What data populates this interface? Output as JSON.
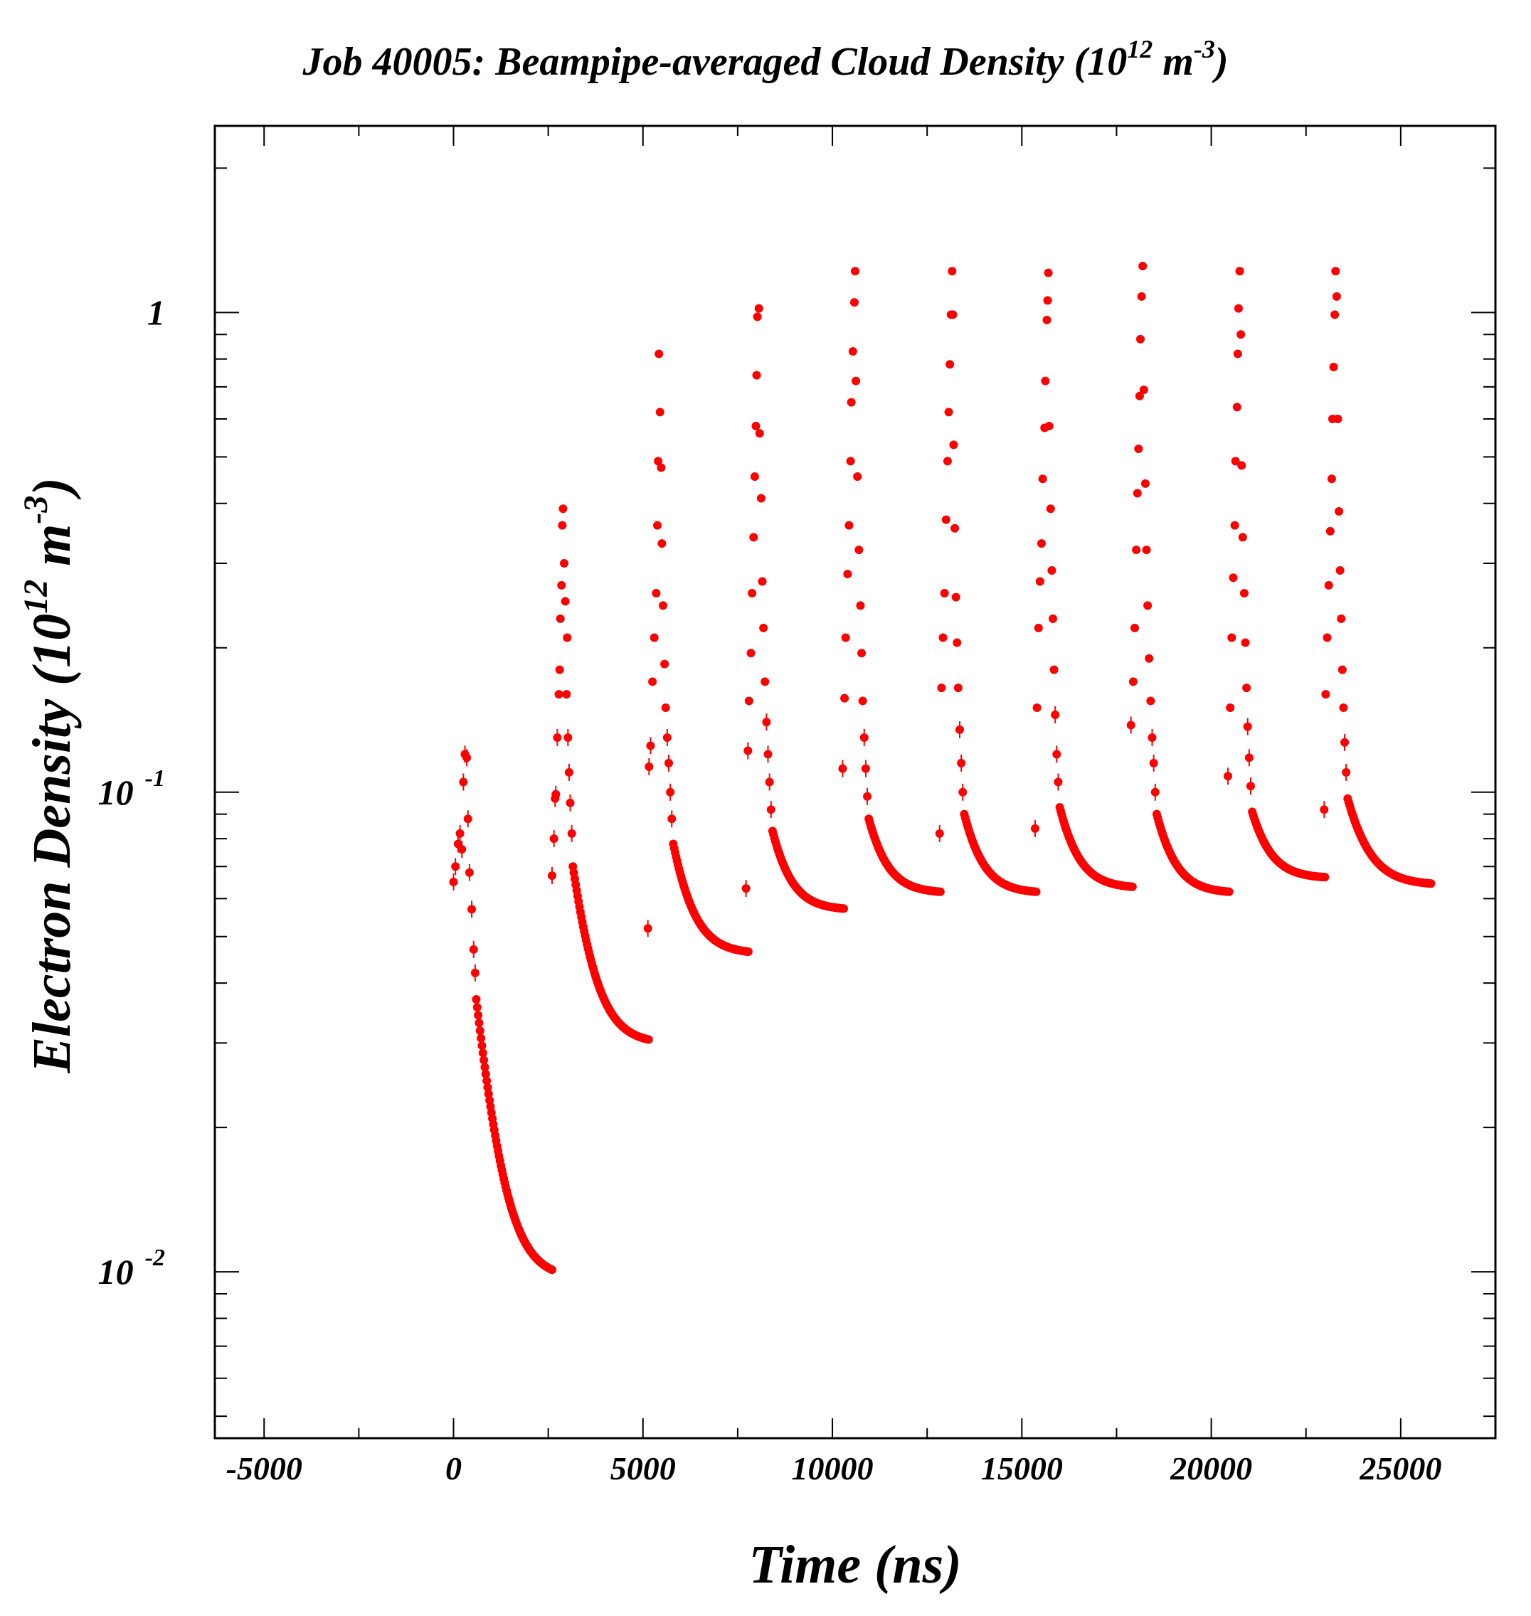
{
  "chart_data": {
    "type": "scatter",
    "title": {
      "main": "Job 40005: Beampipe-averaged Cloud Density (10",
      "sup1": "12",
      "mid": " m",
      "sup2": "-3",
      "end": ")"
    },
    "xlabel": "Time (ns)",
    "ylabel": {
      "main": "Electron Density (10",
      "sup1": "12",
      "mid": " m",
      "sup2": "-3",
      "end": ")"
    },
    "xlim": [
      -6300,
      27500
    ],
    "ylim": [
      0.0045,
      2.45
    ],
    "yscale": "log",
    "grid": false,
    "x_ticks": [
      "-5000",
      "0",
      "5000",
      "10000",
      "15000",
      "20000",
      "25000"
    ],
    "y_ticks": [
      {
        "base": "1",
        "exp": ""
      },
      {
        "base": "10",
        "exp": "-1"
      },
      {
        "base": "10",
        "exp": "-2"
      }
    ],
    "marker_color": "#ff0000",
    "series": [
      {
        "points": [
          [
            0,
            0.065
          ],
          [
            50,
            0.07
          ],
          [
            120,
            0.078
          ],
          [
            170,
            0.082
          ],
          [
            220,
            0.076
          ],
          [
            260,
            0.105
          ],
          [
            300,
            0.12
          ],
          [
            350,
            0.118
          ],
          [
            380,
            0.088
          ],
          [
            420,
            0.068
          ],
          [
            480,
            0.057
          ],
          [
            530,
            0.047
          ],
          [
            570,
            0.042
          ]
        ],
        "decay": {
          "t_start": 600,
          "t_end": 2600,
          "v_start": 0.037,
          "v_end": 0.0101
        }
      },
      {
        "points": [
          [
            2600,
            0.067
          ],
          [
            2650,
            0.08
          ],
          [
            2680,
            0.097
          ],
          [
            2700,
            0.099
          ],
          [
            2740,
            0.13
          ],
          [
            2780,
            0.16
          ],
          [
            2800,
            0.18
          ],
          [
            2820,
            0.23
          ],
          [
            2850,
            0.27
          ],
          [
            2870,
            0.36
          ],
          [
            2890,
            0.39
          ],
          [
            2920,
            0.3
          ],
          [
            2950,
            0.25
          ],
          [
            2980,
            0.16
          ],
          [
            3000,
            0.21
          ],
          [
            3020,
            0.13
          ],
          [
            3050,
            0.11
          ],
          [
            3080,
            0.095
          ],
          [
            3120,
            0.082
          ]
        ],
        "decay": {
          "t_start": 3150,
          "t_end": 5150,
          "v_start": 0.07,
          "v_end": 0.0305
        }
      },
      {
        "points": [
          [
            5130,
            0.052
          ],
          [
            5160,
            0.113
          ],
          [
            5200,
            0.125
          ],
          [
            5250,
            0.17
          ],
          [
            5300,
            0.21
          ],
          [
            5350,
            0.26
          ],
          [
            5380,
            0.36
          ],
          [
            5400,
            0.49
          ],
          [
            5420,
            0.82
          ],
          [
            5450,
            0.62
          ],
          [
            5480,
            0.475
          ],
          [
            5500,
            0.33
          ],
          [
            5530,
            0.245
          ],
          [
            5570,
            0.185
          ],
          [
            5600,
            0.15
          ],
          [
            5640,
            0.13
          ],
          [
            5680,
            0.115
          ],
          [
            5720,
            0.1
          ],
          [
            5760,
            0.088
          ]
        ],
        "decay": {
          "t_start": 5800,
          "t_end": 7780,
          "v_start": 0.078,
          "v_end": 0.0465
        }
      },
      {
        "points": [
          [
            7720,
            0.063
          ],
          [
            7770,
            0.122
          ],
          [
            7800,
            0.155
          ],
          [
            7850,
            0.195
          ],
          [
            7880,
            0.26
          ],
          [
            7920,
            0.34
          ],
          [
            7950,
            0.455
          ],
          [
            7980,
            0.58
          ],
          [
            8000,
            0.74
          ],
          [
            8020,
            0.98
          ],
          [
            8060,
            1.02
          ],
          [
            8080,
            0.56
          ],
          [
            8120,
            0.41
          ],
          [
            8150,
            0.275
          ],
          [
            8180,
            0.22
          ],
          [
            8220,
            0.17
          ],
          [
            8260,
            0.14
          ],
          [
            8300,
            0.12
          ],
          [
            8340,
            0.105
          ],
          [
            8380,
            0.092
          ]
        ],
        "decay": {
          "t_start": 8420,
          "t_end": 10300,
          "v_start": 0.083,
          "v_end": 0.0572
        }
      },
      {
        "points": [
          [
            10270,
            0.112
          ],
          [
            10320,
            0.157
          ],
          [
            10350,
            0.21
          ],
          [
            10400,
            0.285
          ],
          [
            10440,
            0.36
          ],
          [
            10480,
            0.49
          ],
          [
            10500,
            0.65
          ],
          [
            10540,
            0.83
          ],
          [
            10580,
            1.05
          ],
          [
            10600,
            1.22
          ],
          [
            10620,
            0.72
          ],
          [
            10660,
            0.455
          ],
          [
            10700,
            0.32
          ],
          [
            10740,
            0.245
          ],
          [
            10770,
            0.195
          ],
          [
            10800,
            0.155
          ],
          [
            10840,
            0.13
          ],
          [
            10880,
            0.112
          ],
          [
            10920,
            0.098
          ]
        ],
        "decay": {
          "t_start": 10960,
          "t_end": 12850,
          "v_start": 0.088,
          "v_end": 0.062
        }
      },
      {
        "points": [
          [
            12830,
            0.082
          ],
          [
            12880,
            0.165
          ],
          [
            12920,
            0.21
          ],
          [
            12960,
            0.26
          ],
          [
            13000,
            0.37
          ],
          [
            13040,
            0.49
          ],
          [
            13070,
            0.62
          ],
          [
            13100,
            0.78
          ],
          [
            13130,
            0.99
          ],
          [
            13160,
            1.22
          ],
          [
            13180,
            0.99
          ],
          [
            13200,
            0.53
          ],
          [
            13230,
            0.355
          ],
          [
            13260,
            0.255
          ],
          [
            13290,
            0.205
          ],
          [
            13320,
            0.165
          ],
          [
            13360,
            0.135
          ],
          [
            13400,
            0.115
          ],
          [
            13440,
            0.1
          ]
        ],
        "decay": {
          "t_start": 13480,
          "t_end": 15380,
          "v_start": 0.09,
          "v_end": 0.062
        }
      },
      {
        "points": [
          [
            15350,
            0.084
          ],
          [
            15400,
            0.15
          ],
          [
            15440,
            0.22
          ],
          [
            15480,
            0.275
          ],
          [
            15520,
            0.33
          ],
          [
            15550,
            0.45
          ],
          [
            15600,
            0.575
          ],
          [
            15620,
            0.72
          ],
          [
            15660,
            0.965
          ],
          [
            15680,
            1.06
          ],
          [
            15700,
            1.21
          ],
          [
            15720,
            0.58
          ],
          [
            15760,
            0.39
          ],
          [
            15790,
            0.29
          ],
          [
            15820,
            0.23
          ],
          [
            15850,
            0.18
          ],
          [
            15880,
            0.145
          ],
          [
            15920,
            0.12
          ],
          [
            15960,
            0.105
          ]
        ],
        "decay": {
          "t_start": 16000,
          "t_end": 17920,
          "v_start": 0.093,
          "v_end": 0.0635
        }
      },
      {
        "points": [
          [
            17880,
            0.138
          ],
          [
            17940,
            0.17
          ],
          [
            17980,
            0.22
          ],
          [
            18020,
            0.32
          ],
          [
            18050,
            0.42
          ],
          [
            18080,
            0.52
          ],
          [
            18110,
            0.67
          ],
          [
            18130,
            0.88
          ],
          [
            18160,
            1.08
          ],
          [
            18190,
            1.25
          ],
          [
            18220,
            0.69
          ],
          [
            18260,
            0.44
          ],
          [
            18290,
            0.32
          ],
          [
            18320,
            0.245
          ],
          [
            18360,
            0.19
          ],
          [
            18400,
            0.155
          ],
          [
            18440,
            0.13
          ],
          [
            18480,
            0.115
          ],
          [
            18520,
            0.1
          ]
        ],
        "decay": {
          "t_start": 18560,
          "t_end": 20470,
          "v_start": 0.09,
          "v_end": 0.062
        }
      },
      {
        "points": [
          [
            20440,
            0.108
          ],
          [
            20500,
            0.15
          ],
          [
            20540,
            0.21
          ],
          [
            20580,
            0.28
          ],
          [
            20620,
            0.36
          ],
          [
            20640,
            0.49
          ],
          [
            20680,
            0.635
          ],
          [
            20700,
            0.82
          ],
          [
            20720,
            1.02
          ],
          [
            20750,
            1.22
          ],
          [
            20780,
            0.9
          ],
          [
            20800,
            0.48
          ],
          [
            20830,
            0.34
          ],
          [
            20870,
            0.26
          ],
          [
            20900,
            0.205
          ],
          [
            20930,
            0.165
          ],
          [
            20960,
            0.137
          ],
          [
            21000,
            0.118
          ],
          [
            21040,
            0.103
          ]
        ],
        "decay": {
          "t_start": 21080,
          "t_end": 23000,
          "v_start": 0.091,
          "v_end": 0.0665
        }
      },
      {
        "points": [
          [
            22980,
            0.092
          ],
          [
            23020,
            0.16
          ],
          [
            23060,
            0.21
          ],
          [
            23100,
            0.27
          ],
          [
            23140,
            0.35
          ],
          [
            23180,
            0.45
          ],
          [
            23200,
            0.6
          ],
          [
            23230,
            0.77
          ],
          [
            23260,
            0.99
          ],
          [
            23280,
            1.22
          ],
          [
            23310,
            1.08
          ],
          [
            23340,
            0.6
          ],
          [
            23370,
            0.385
          ],
          [
            23400,
            0.29
          ],
          [
            23430,
            0.23
          ],
          [
            23460,
            0.18
          ],
          [
            23490,
            0.15
          ],
          [
            23520,
            0.127
          ],
          [
            23560,
            0.11
          ]
        ],
        "decay": {
          "t_start": 23600,
          "t_end": 25800,
          "v_start": 0.097,
          "v_end": 0.0645
        }
      }
    ]
  }
}
